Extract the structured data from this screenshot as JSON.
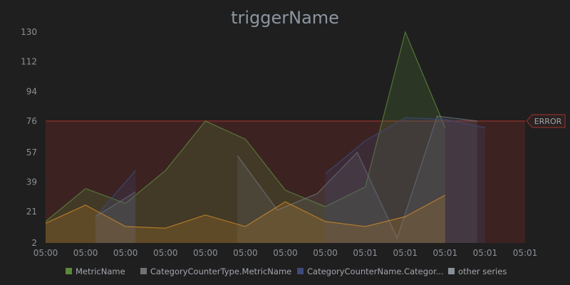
{
  "chart_data": {
    "type": "area",
    "title": "triggerName",
    "xlabel": "",
    "ylabel": "",
    "ylim": [
      2,
      130
    ],
    "yticks": [
      2,
      21,
      39,
      57,
      76,
      94,
      112,
      130
    ],
    "x_tick_labels": [
      "05:00",
      "05:00",
      "05:00",
      "05:00",
      "05:00",
      "05:00",
      "05:00",
      "05:00",
      "05:01",
      "05:01",
      "05:01",
      "05:01",
      "05:01"
    ],
    "grid": false,
    "legend_position": "bottom",
    "series": [
      {
        "name": "MetricName",
        "color": "#5b8a3a",
        "start": 0,
        "values": [
          15,
          35,
          26,
          46,
          76,
          65,
          34,
          24,
          36,
          130,
          72
        ]
      },
      {
        "name": "CategoryCounterType.MetricName",
        "color": "#6e7277",
        "segments": [
          {
            "start": 1.25,
            "values": [
              18,
              33
            ]
          },
          {
            "start": 4.8,
            "values": [
              55,
              22,
              32,
              57,
              5,
              79,
              76
            ]
          }
        ]
      },
      {
        "name": "CategoryCounterName.Categor...",
        "color": "#3e4a7a",
        "segments": [
          {
            "start": 1.25,
            "values": [
              18,
              46
            ]
          },
          {
            "start": 7,
            "values": [
              44,
              64,
              78,
              77,
              72
            ]
          }
        ]
      },
      {
        "name": "other series",
        "color": "#8a9099",
        "hidden_in_plot": true,
        "values": []
      },
      {
        "name": "",
        "color": "#c98a2a",
        "start": 0,
        "values": [
          14,
          25,
          12,
          11,
          19,
          12,
          27,
          15,
          12,
          18,
          31
        ]
      }
    ],
    "threshold": {
      "label": "ERROR",
      "value": 76,
      "color": "#8a2f2a"
    }
  }
}
